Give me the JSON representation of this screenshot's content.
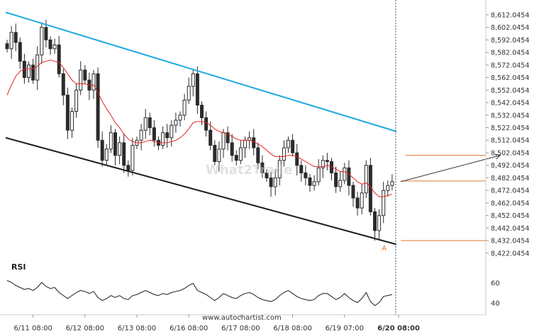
{
  "chart_data": {
    "type": "candlestick",
    "title": "",
    "y_ticks": [
      "8,612.0454",
      "8,602.0454",
      "8,592.0454",
      "8,582.0454",
      "8,572.0454",
      "8,562.0454",
      "8,552.0454",
      "8,542.0454",
      "8,532.0454",
      "8,522.0454",
      "8,512.0454",
      "8,502.0454",
      "8,492.0454",
      "8,482.0454",
      "8,472.0454",
      "8,462.0454",
      "8,452.0454",
      "8,442.0454",
      "8,432.0454",
      "8,422.0454"
    ],
    "x_ticks": [
      "6/11 08:00",
      "6/12 08:00",
      "6/13 08:00",
      "6/16 08:00",
      "6/17 08:00",
      "6/18 08:00",
      "6/19 07:00",
      "6/20 08:00"
    ],
    "ylim": [
      8418,
      8621
    ],
    "close_series": [
      8585,
      8598,
      8590,
      8575,
      8562,
      8572,
      8560,
      8580,
      8602,
      8592,
      8585,
      8588,
      8565,
      8548,
      8520,
      8535,
      8552,
      8568,
      8560,
      8552,
      8565,
      8512,
      8496,
      8505,
      8518,
      8500,
      8510,
      8492,
      8488,
      8508,
      8512,
      8520,
      8530,
      8522,
      8512,
      8508,
      8518,
      8514,
      8524,
      8528,
      8532,
      8544,
      8555,
      8565,
      8540,
      8530,
      8520,
      8508,
      8495,
      8505,
      8518,
      8510,
      8500,
      8496,
      8506,
      8512,
      8514,
      8506,
      8494,
      8486,
      8482,
      8475,
      8482,
      8496,
      8506,
      8512,
      8502,
      8492,
      8486,
      8482,
      8476,
      8479,
      8490,
      8496,
      8495,
      8486,
      8475,
      8480,
      8490,
      8476,
      8466,
      8458,
      8470,
      8492,
      8455,
      8440,
      8452,
      8472,
      8476,
      8479
    ],
    "ma_series": [
      8548,
      8556,
      8563,
      8567,
      8569,
      8569,
      8569,
      8571,
      8574,
      8575,
      8576,
      8575,
      8574,
      8570,
      8565,
      8560,
      8557,
      8557,
      8557,
      8556,
      8556,
      8550,
      8543,
      8537,
      8532,
      8526,
      8522,
      8517,
      8513,
      8511,
      8510,
      8510,
      8511,
      8512,
      8511,
      8510,
      8510,
      8510,
      8511,
      8512,
      8514,
      8517,
      8521,
      8526,
      8527,
      8527,
      8526,
      8524,
      8521,
      8519,
      8518,
      8517,
      8515,
      8513,
      8512,
      8512,
      8512,
      8511,
      8509,
      8507,
      8504,
      8501,
      8499,
      8499,
      8499,
      8500,
      8500,
      8499,
      8497,
      8495,
      8493,
      8491,
      8491,
      8491,
      8492,
      8491,
      8489,
      8487,
      8487,
      8485,
      8482,
      8479,
      8477,
      8478,
      8475,
      8470,
      8467,
      8467,
      8468,
      8469
    ],
    "rsi_series": [
      62,
      60,
      57,
      55,
      53,
      54,
      52,
      55,
      60,
      56,
      54,
      55,
      50,
      47,
      44,
      47,
      50,
      52,
      51,
      49,
      51,
      45,
      42,
      44,
      47,
      45,
      47,
      44,
      43,
      47,
      48,
      50,
      52,
      50,
      48,
      47,
      49,
      48,
      50,
      51,
      52,
      54,
      57,
      59,
      52,
      50,
      48,
      45,
      42,
      45,
      49,
      47,
      45,
      44,
      47,
      49,
      50,
      48,
      45,
      43,
      42,
      41,
      43,
      47,
      50,
      52,
      49,
      46,
      44,
      43,
      42,
      43,
      47,
      49,
      49,
      46,
      43,
      45,
      49,
      45,
      42,
      40,
      44,
      50,
      41,
      37,
      40,
      46,
      47,
      48
    ],
    "rsi_label": "RSI",
    "rsi_ticks": [
      "60",
      "40"
    ],
    "channel": {
      "upper": {
        "start": {
          "t": 0,
          "v": 8614
        },
        "end": {
          "t": 90,
          "v": 8519
        }
      },
      "lower": {
        "start": {
          "t": 0,
          "v": 8514
        },
        "end": {
          "t": 90,
          "v": 8429
        }
      }
    },
    "point_label": "A",
    "forecast": {
      "from": {
        "t": 91,
        "v": 8479
      },
      "to": {
        "t": 114,
        "v": 8500
      }
    },
    "h_levels": [
      8500,
      8479.5,
      8432
    ],
    "current_index": 89,
    "colors": {
      "candle": "#2b2b2b",
      "ma": "#e82020",
      "upper_channel": "#1ea9dd",
      "lower_channel": "#1e1e1e",
      "levels": "#e8772e",
      "current_line": "#2e5a6e",
      "rsi": "#1a1a1a"
    }
  },
  "watermark": "What2Trade",
  "source": "www.autochartist.com"
}
